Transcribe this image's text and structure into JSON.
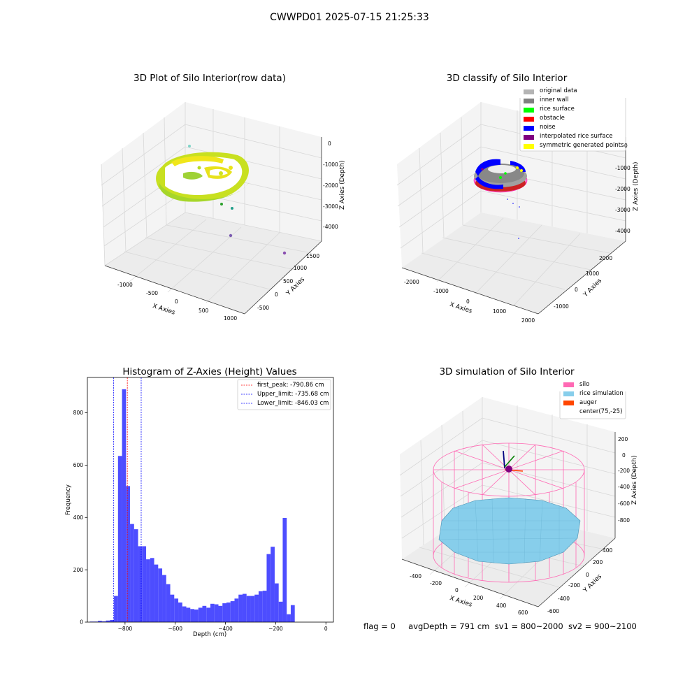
{
  "suptitle": "CWWPD01 2025-07-15 21:25:33",
  "panels": {
    "raw": {
      "title": "3D Plot of Silo Interior(row data)",
      "xlabel": "X Axies",
      "ylabel": "Y Axies",
      "zlabel": "Z Axies (Depth)",
      "xticks": [
        "-1000",
        "-500",
        "0",
        "500",
        "1000"
      ],
      "yticks": [
        "-500",
        "0",
        "500",
        "1000",
        "1500"
      ],
      "zticks": [
        "0",
        "-1000",
        "-2000",
        "-3000",
        "-4000"
      ]
    },
    "classify": {
      "title": "3D classify of Silo Interior",
      "xlabel": "X Axies",
      "ylabel": "Y Axies",
      "zlabel": "Z Axies (Depth)",
      "xticks": [
        "-2000",
        "-1000",
        "0",
        "1000",
        "2000"
      ],
      "yticks": [
        "-1000",
        "0",
        "1000",
        "2000"
      ],
      "zticks": [
        "0",
        "-1000",
        "-2000",
        "-3000",
        "-4000"
      ],
      "legend": [
        {
          "label": "original data",
          "color": "#b4b4b4"
        },
        {
          "label": "inner wall",
          "color": "#808080"
        },
        {
          "label": "rice surface",
          "color": "#00ff00"
        },
        {
          "label": "obstacle",
          "color": "#ff0000"
        },
        {
          "label": "noise",
          "color": "#0000ff"
        },
        {
          "label": "interpolated rice surface",
          "color": "#800080"
        },
        {
          "label": "symmetric generated points",
          "color": "#ffff00"
        }
      ]
    },
    "simulation": {
      "title": "3D simulation of Silo Interior",
      "xlabel": "X Axies",
      "ylabel": "Y Axies",
      "zlabel": "Z Axies (Depth)",
      "xticks": [
        "-400",
        "-200",
        "0",
        "200",
        "400",
        "600"
      ],
      "yticks": [
        "-600",
        "-400",
        "-200",
        "0",
        "200",
        "400"
      ],
      "zticks": [
        "200",
        "0",
        "-200",
        "-400",
        "-600",
        "-800"
      ],
      "legend": [
        {
          "label": "silo",
          "color": "#ff69b4"
        },
        {
          "label": "rice simulation",
          "color": "#87ceeb"
        },
        {
          "label": "auger",
          "color": "#ff4500"
        },
        {
          "label": "center(75,-25)",
          "color": ""
        }
      ]
    }
  },
  "chart_data": {
    "type": "bar",
    "title": "Histogram of Z-Axies (Height) Values",
    "xlabel": "Depth (cm)",
    "ylabel": "Frequency",
    "xlim": [
      -950,
      30
    ],
    "ylim": [
      0,
      935
    ],
    "xticks": [
      -800,
      -600,
      -400,
      -200,
      0
    ],
    "yticks": [
      0,
      200,
      400,
      600,
      800
    ],
    "bin_start": -940,
    "bin_width": 16,
    "values": [
      2,
      2,
      5,
      3,
      6,
      8,
      100,
      635,
      890,
      520,
      375,
      355,
      290,
      290,
      240,
      245,
      220,
      205,
      180,
      145,
      105,
      90,
      75,
      60,
      55,
      50,
      48,
      55,
      62,
      55,
      70,
      68,
      62,
      72,
      75,
      80,
      90,
      105,
      108,
      100,
      100,
      105,
      118,
      120,
      260,
      288,
      148,
      78,
      398,
      30,
      65
    ],
    "bar_color": "#4d4dff",
    "vlines": [
      {
        "label": "first_peak: -790.86 cm",
        "x": -790.86,
        "color": "#ff0000"
      },
      {
        "label": "Upper_limit: -735.68 cm",
        "x": -735.68,
        "color": "#0000ff"
      },
      {
        "label": "Lower_limit: -846.03 cm",
        "x": -846.03,
        "color": "#0000ff"
      }
    ]
  },
  "footer": {
    "flag": "flag = 0",
    "avg": "avgDepth = 791 cm",
    "sv1": "sv1 = 800~2000",
    "sv2": "sv2 = 900~2100"
  }
}
